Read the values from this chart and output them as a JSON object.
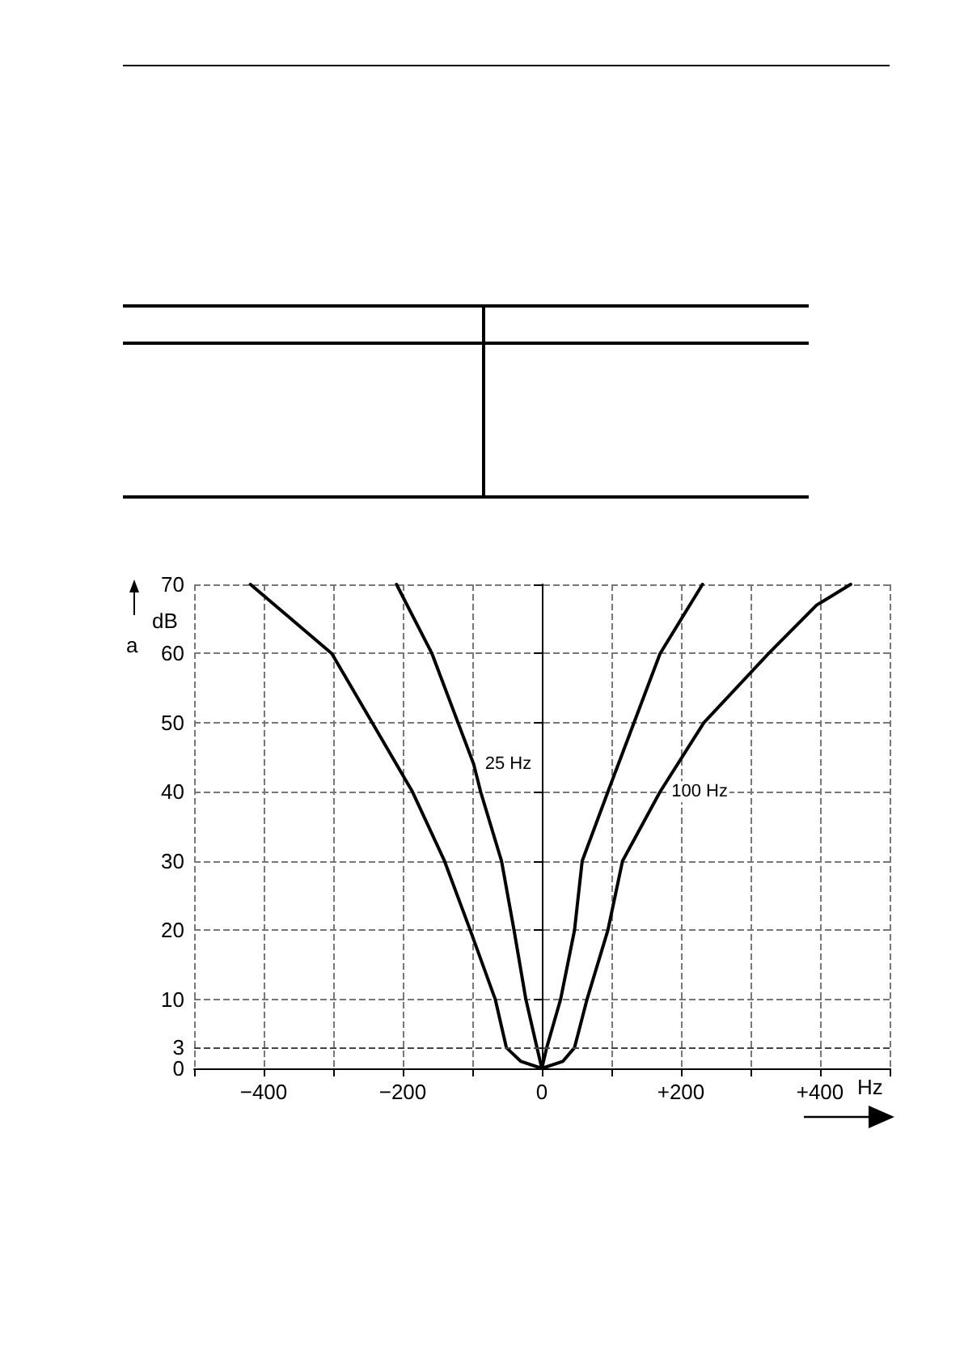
{
  "chart_data": {
    "type": "line",
    "ylabel": "a",
    "xlabel": "Hz",
    "annotations": [
      "dB"
    ],
    "xlim": [
      -500,
      500
    ],
    "ylim": [
      0,
      70
    ],
    "xticks": [
      {
        "value": -500,
        "label": null
      },
      {
        "value": -400,
        "label": "−400"
      },
      {
        "value": -300,
        "label": null
      },
      {
        "value": -200,
        "label": "−200"
      },
      {
        "value": -100,
        "label": null
      },
      0,
      {
        "value": 100,
        "label": null
      },
      {
        "value": 200,
        "label": "+200"
      },
      {
        "value": 300,
        "label": null
      },
      {
        "value": 400,
        "label": "+400"
      },
      {
        "value": 500,
        "label": null
      }
    ],
    "yticks": [
      0,
      3,
      10,
      20,
      30,
      40,
      50,
      60,
      70
    ],
    "grid": true,
    "legend": false,
    "marker": "none",
    "line_style": "solid",
    "ref_lines": [
      {
        "axis": "y",
        "value": 3,
        "line_style": "dashed"
      }
    ],
    "series": [
      {
        "name": "100 Hz",
        "color": "#000000",
        "x": [
          -419,
          -302,
          -244,
          -186,
          -140,
          -103,
          -67,
          -51,
          -30,
          0,
          30,
          47,
          65,
          95,
          116,
          170,
          233,
          326,
          395,
          444
        ],
        "values": [
          70,
          60,
          50,
          40,
          30,
          20,
          10,
          3,
          1,
          0,
          1,
          3,
          10,
          20,
          30,
          40,
          50,
          60,
          67,
          70
        ]
      },
      {
        "name": "25 Hz",
        "color": "#000000",
        "x": [
          -209,
          -158,
          -98,
          -88,
          -58,
          -40,
          -23,
          -7,
          0,
          7,
          27,
          47,
          58,
          95,
          170,
          231
        ],
        "values": [
          70,
          60,
          44,
          40,
          30,
          20,
          10,
          3,
          0,
          3,
          10,
          20,
          30,
          40,
          60,
          70
        ]
      }
    ]
  }
}
